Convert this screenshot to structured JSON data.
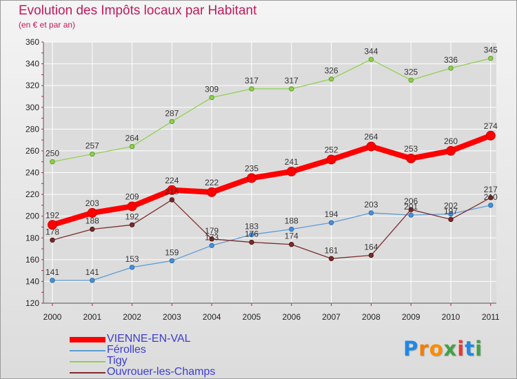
{
  "chart_data": {
    "type": "line",
    "title": "Evolution des Impôts locaux par Habitant",
    "subtitle": "(en € et par an)",
    "x": [
      "2000",
      "2001",
      "2002",
      "2003",
      "2004",
      "2005",
      "2006",
      "2007",
      "2008",
      "2009",
      "2010",
      "2011"
    ],
    "ylim": [
      120,
      360
    ],
    "yticks": [
      "120",
      "140",
      "160",
      "180",
      "200",
      "220",
      "240",
      "260",
      "280",
      "300",
      "320",
      "340",
      "360"
    ],
    "grid": true,
    "legend_position": "bottom-left",
    "series": [
      {
        "name": "VIENNE-EN-VAL",
        "color": "#ff0000",
        "values": [
          192,
          203,
          209,
          224,
          222,
          235,
          241,
          252,
          264,
          253,
          260,
          274
        ]
      },
      {
        "name": "Férolles",
        "color": "#5b9bd5",
        "values": [
          141,
          141,
          153,
          159,
          173,
          183,
          188,
          194,
          203,
          201,
          202,
          210
        ]
      },
      {
        "name": "Tigy",
        "color": "#92d050",
        "values": [
          250,
          257,
          264,
          287,
          309,
          317,
          317,
          326,
          344,
          325,
          336,
          345
        ]
      },
      {
        "name": "Ouvrouer-les-Champs",
        "color": "#7b2c2c",
        "values": [
          178,
          188,
          192,
          215,
          179,
          176,
          174,
          161,
          164,
          206,
          197,
          217
        ]
      }
    ],
    "data_labels": {
      "VIENNE-EN-VAL": [
        "192",
        "203",
        "209",
        "224",
        "222",
        "235",
        "241",
        "252",
        "264",
        "253",
        "260",
        "274"
      ],
      "Férolles": [
        "141",
        "141",
        "153",
        "159",
        "173",
        "183",
        "188",
        "194",
        "203",
        "201",
        "202",
        "210"
      ],
      "Tigy": [
        "250",
        "257",
        "264",
        "287",
        "309",
        "317",
        "317",
        "326",
        "344",
        "325",
        "336",
        "345"
      ],
      "Ouvrouer-les-Champs": [
        "178",
        "188",
        "192",
        "215",
        "179",
        "176",
        "174",
        "161",
        "164",
        "206",
        "197",
        "217"
      ]
    }
  },
  "logo": {
    "text": "Proxiti",
    "letter_colors": [
      "#1e88e5",
      "#f57c00",
      "#fb8c00",
      "#43a047",
      "#e53935",
      "#1e88e5",
      "#43a047"
    ]
  }
}
